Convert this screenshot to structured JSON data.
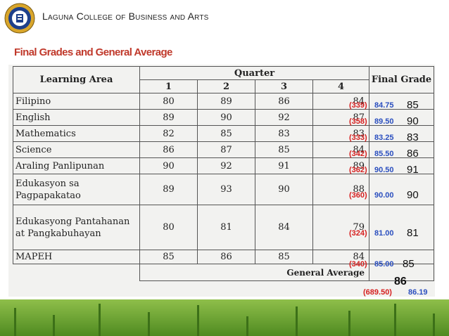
{
  "header": {
    "school_name": "Laguna College of Business and Arts"
  },
  "page_title": "Final Grades and General Average",
  "table": {
    "col_learning_area": "Learning Area",
    "col_quarter": "Quarter",
    "col_final_grade": "Final Grade",
    "quarters": [
      "1",
      "2",
      "3",
      "4"
    ],
    "rows": [
      {
        "subject": "Filipino",
        "q": [
          "80",
          "89",
          "86",
          "84"
        ],
        "sum": "(339)",
        "avg": "84.75",
        "final": "85"
      },
      {
        "subject": "English",
        "q": [
          "89",
          "90",
          "92",
          "87"
        ],
        "sum": "(358)",
        "avg": "89.50",
        "final": "90"
      },
      {
        "subject": "Mathematics",
        "q": [
          "82",
          "85",
          "83",
          "83"
        ],
        "sum": "(333)",
        "avg": "83.25",
        "final": "83"
      },
      {
        "subject": "Science",
        "q": [
          "86",
          "87",
          "85",
          "84"
        ],
        "sum": "(342)",
        "avg": "85.50",
        "final": "86"
      },
      {
        "subject": "Araling Panlipunan",
        "q": [
          "90",
          "92",
          "91",
          "89"
        ],
        "sum": "(362)",
        "avg": "90.50",
        "final": "91"
      },
      {
        "subject": "Edukasyon sa Pagpapakatao",
        "q": [
          "89",
          "93",
          "90",
          "88"
        ],
        "sum": "(360)",
        "avg": "90.00",
        "final": "90"
      },
      {
        "subject": "Edukasyong Pantahanan at Pangkabuhayan",
        "q": [
          "80",
          "81",
          "84",
          "79"
        ],
        "sum": "(324)",
        "avg": "81.00",
        "final": "81"
      },
      {
        "subject": "MAPEH",
        "q": [
          "85",
          "86",
          "85",
          "84"
        ],
        "sum": "(340)",
        "avg": "85.00",
        "final": "85"
      }
    ],
    "general_average_label": "General Average",
    "general_average": "86",
    "general_sum": "(689.50)",
    "general_exact": "86.19"
  },
  "colors": {
    "title_red": "#c0392b",
    "annotation_red": "#d62020",
    "annotation_blue": "#2b4fbf",
    "grass_green": "#4f8a21"
  }
}
